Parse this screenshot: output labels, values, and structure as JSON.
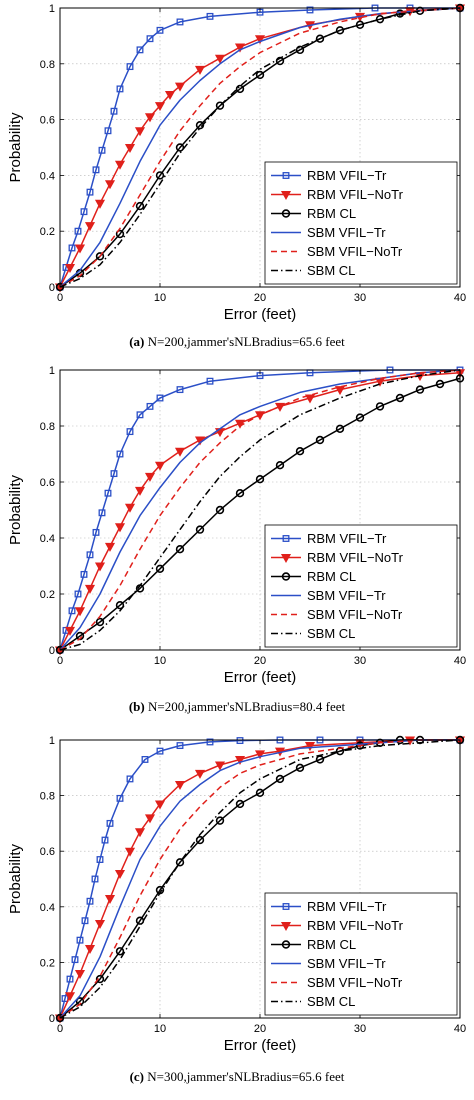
{
  "figure": {
    "captions": [
      {
        "label": "(a)",
        "text": "N=200,jammer'sNLBradius=65.6 feet"
      },
      {
        "label": "(b)",
        "text": "N=200,jammer'sNLBradius=80.4 feet"
      },
      {
        "label": "(c)",
        "text": "N=300,jammer'sNLBradius=65.6 feet"
      }
    ]
  },
  "chart_data": [
    {
      "type": "line",
      "title": "",
      "xlabel": "Error (feet)",
      "ylabel": "Probability",
      "xlim": [
        0,
        40
      ],
      "ylim": [
        0,
        1
      ],
      "xticks": [
        0,
        10,
        20,
        30,
        40
      ],
      "yticks": [
        0,
        0.2,
        0.4,
        0.6,
        0.8,
        1
      ],
      "grid": true,
      "legend_position": "bottom-right",
      "series": [
        {
          "name": "RBM VFIL−Tr",
          "color": "#2b4fc7",
          "style": "solid",
          "marker": "square",
          "x": [
            0,
            0.6,
            1.2,
            1.8,
            2.4,
            3,
            3.6,
            4.2,
            4.8,
            5.4,
            6,
            7,
            8,
            9,
            10,
            12,
            15,
            20,
            25,
            31.5,
            35,
            40
          ],
          "y": [
            0,
            0.07,
            0.14,
            0.2,
            0.27,
            0.34,
            0.42,
            0.49,
            0.56,
            0.63,
            0.71,
            0.79,
            0.85,
            0.89,
            0.92,
            0.95,
            0.97,
            0.985,
            0.993,
            1,
            1,
            1
          ]
        },
        {
          "name": "RBM VFIL−NoTr",
          "color": "#e0201b",
          "style": "solid",
          "marker": "triangle-down",
          "x": [
            0,
            1,
            2,
            3,
            4,
            5,
            6,
            7,
            8,
            9,
            10,
            11,
            12,
            14,
            16,
            18,
            20,
            25,
            30,
            35,
            40
          ],
          "y": [
            0,
            0.07,
            0.14,
            0.22,
            0.3,
            0.37,
            0.44,
            0.5,
            0.56,
            0.61,
            0.65,
            0.69,
            0.72,
            0.78,
            0.82,
            0.86,
            0.89,
            0.94,
            0.97,
            0.99,
            1
          ]
        },
        {
          "name": "RBM CL",
          "color": "#000000",
          "style": "solid",
          "marker": "circle",
          "x": [
            0,
            2,
            4,
            6,
            8,
            10,
            12,
            14,
            16,
            18,
            20,
            22,
            24,
            26,
            28,
            30,
            32,
            34,
            36,
            40
          ],
          "y": [
            0,
            0.05,
            0.11,
            0.19,
            0.29,
            0.4,
            0.5,
            0.58,
            0.65,
            0.71,
            0.76,
            0.81,
            0.85,
            0.89,
            0.92,
            0.94,
            0.96,
            0.98,
            0.99,
            1
          ]
        },
        {
          "name": "SBM VFIL−Tr",
          "color": "#2b4fc7",
          "style": "solid",
          "marker": "none",
          "x": [
            0,
            2,
            4,
            6,
            8,
            10,
            12,
            14,
            16,
            18,
            20,
            24,
            28,
            32,
            36,
            40
          ],
          "y": [
            0,
            0.06,
            0.16,
            0.3,
            0.45,
            0.58,
            0.67,
            0.74,
            0.8,
            0.85,
            0.88,
            0.93,
            0.96,
            0.98,
            0.99,
            1
          ]
        },
        {
          "name": "SBM VFIL−NoTr",
          "color": "#e0201b",
          "style": "dashed",
          "marker": "none",
          "x": [
            0,
            2,
            4,
            6,
            8,
            10,
            12,
            14,
            16,
            18,
            20,
            24,
            28,
            32,
            36,
            40
          ],
          "y": [
            0,
            0.04,
            0.11,
            0.21,
            0.33,
            0.45,
            0.56,
            0.65,
            0.73,
            0.79,
            0.84,
            0.91,
            0.95,
            0.98,
            0.99,
            1
          ]
        },
        {
          "name": "SBM CL",
          "color": "#000000",
          "style": "dashdot",
          "marker": "none",
          "x": [
            0,
            2,
            4,
            6,
            8,
            10,
            12,
            14,
            16,
            18,
            20,
            24,
            28,
            32,
            36,
            40
          ],
          "y": [
            0,
            0.03,
            0.08,
            0.16,
            0.26,
            0.37,
            0.48,
            0.57,
            0.65,
            0.72,
            0.78,
            0.86,
            0.92,
            0.96,
            0.99,
            1
          ]
        }
      ]
    },
    {
      "type": "line",
      "title": "",
      "xlabel": "Error (feet)",
      "ylabel": "Probability",
      "xlim": [
        0,
        40
      ],
      "ylim": [
        0,
        1
      ],
      "xticks": [
        0,
        10,
        20,
        30,
        40
      ],
      "yticks": [
        0,
        0.2,
        0.4,
        0.6,
        0.8,
        1
      ],
      "grid": true,
      "legend_position": "bottom-right",
      "series": [
        {
          "name": "RBM VFIL−Tr",
          "color": "#2b4fc7",
          "style": "solid",
          "marker": "square",
          "x": [
            0,
            0.6,
            1.2,
            1.8,
            2.4,
            3,
            3.6,
            4.2,
            4.8,
            5.4,
            6,
            7,
            8,
            9,
            10,
            12,
            15,
            20,
            25,
            33,
            40
          ],
          "y": [
            0,
            0.07,
            0.14,
            0.2,
            0.27,
            0.34,
            0.42,
            0.49,
            0.56,
            0.63,
            0.7,
            0.78,
            0.84,
            0.87,
            0.9,
            0.93,
            0.96,
            0.98,
            0.99,
            1,
            1
          ]
        },
        {
          "name": "RBM VFIL−NoTr",
          "color": "#e0201b",
          "style": "solid",
          "marker": "triangle-down",
          "x": [
            0,
            1,
            2,
            3,
            4,
            5,
            6,
            7,
            8,
            9,
            10,
            12,
            14,
            16,
            18,
            20,
            22,
            25,
            28,
            32,
            36,
            40
          ],
          "y": [
            0,
            0.07,
            0.14,
            0.22,
            0.3,
            0.37,
            0.44,
            0.51,
            0.57,
            0.62,
            0.66,
            0.71,
            0.75,
            0.78,
            0.81,
            0.84,
            0.87,
            0.9,
            0.93,
            0.96,
            0.98,
            0.99
          ]
        },
        {
          "name": "RBM CL",
          "color": "#000000",
          "style": "solid",
          "marker": "circle",
          "x": [
            0,
            2,
            4,
            6,
            8,
            10,
            12,
            14,
            16,
            18,
            20,
            22,
            24,
            26,
            28,
            30,
            32,
            34,
            36,
            38,
            40
          ],
          "y": [
            0,
            0.05,
            0.1,
            0.16,
            0.22,
            0.29,
            0.36,
            0.43,
            0.5,
            0.56,
            0.61,
            0.66,
            0.71,
            0.75,
            0.79,
            0.83,
            0.87,
            0.9,
            0.93,
            0.95,
            0.97
          ]
        },
        {
          "name": "SBM VFIL−Tr",
          "color": "#2b4fc7",
          "style": "solid",
          "marker": "none",
          "x": [
            0,
            2,
            4,
            6,
            8,
            10,
            12,
            14,
            16,
            18,
            20,
            24,
            28,
            32,
            36,
            40
          ],
          "y": [
            0,
            0.08,
            0.2,
            0.35,
            0.48,
            0.58,
            0.67,
            0.74,
            0.79,
            0.84,
            0.87,
            0.92,
            0.95,
            0.97,
            0.99,
            1
          ]
        },
        {
          "name": "SBM VFIL−NoTr",
          "color": "#e0201b",
          "style": "dashed",
          "marker": "none",
          "x": [
            0,
            2,
            4,
            6,
            8,
            10,
            12,
            14,
            16,
            18,
            20,
            24,
            28,
            32,
            36,
            40
          ],
          "y": [
            0,
            0.04,
            0.12,
            0.23,
            0.36,
            0.48,
            0.58,
            0.67,
            0.74,
            0.8,
            0.84,
            0.9,
            0.94,
            0.97,
            0.99,
            1
          ]
        },
        {
          "name": "SBM CL",
          "color": "#000000",
          "style": "dashdot",
          "marker": "none",
          "x": [
            0,
            2,
            4,
            6,
            8,
            10,
            12,
            14,
            16,
            18,
            20,
            24,
            28,
            32,
            36,
            40
          ],
          "y": [
            0,
            0.02,
            0.07,
            0.14,
            0.23,
            0.33,
            0.43,
            0.53,
            0.62,
            0.69,
            0.75,
            0.84,
            0.9,
            0.95,
            0.98,
            1
          ]
        }
      ]
    },
    {
      "type": "line",
      "title": "",
      "xlabel": "Error (feet)",
      "ylabel": "Probability",
      "xlim": [
        0,
        40
      ],
      "ylim": [
        0,
        1
      ],
      "xticks": [
        0,
        10,
        20,
        30,
        40
      ],
      "yticks": [
        0,
        0.2,
        0.4,
        0.6,
        0.8,
        1
      ],
      "grid": true,
      "legend_position": "bottom-right",
      "series": [
        {
          "name": "RBM VFIL−Tr",
          "color": "#2b4fc7",
          "style": "solid",
          "marker": "square",
          "x": [
            0,
            0.5,
            1,
            1.5,
            2,
            2.5,
            3,
            3.5,
            4,
            4.5,
            5,
            6,
            7,
            8.5,
            10,
            12,
            15,
            18,
            22,
            26,
            30,
            40
          ],
          "y": [
            0,
            0.07,
            0.14,
            0.21,
            0.28,
            0.35,
            0.42,
            0.5,
            0.57,
            0.64,
            0.7,
            0.79,
            0.86,
            0.93,
            0.96,
            0.98,
            0.993,
            0.998,
            1,
            1,
            1,
            1
          ]
        },
        {
          "name": "RBM VFIL−NoTr",
          "color": "#e0201b",
          "style": "solid",
          "marker": "triangle-down",
          "x": [
            0,
            1,
            2,
            3,
            4,
            5,
            6,
            7,
            8,
            9,
            10,
            12,
            14,
            16,
            18,
            20,
            22,
            25,
            30,
            35,
            40
          ],
          "y": [
            0,
            0.08,
            0.16,
            0.25,
            0.34,
            0.43,
            0.52,
            0.6,
            0.67,
            0.72,
            0.77,
            0.84,
            0.88,
            0.91,
            0.93,
            0.95,
            0.96,
            0.98,
            0.99,
            1,
            1
          ]
        },
        {
          "name": "RBM CL",
          "color": "#000000",
          "style": "solid",
          "marker": "circle",
          "x": [
            0,
            2,
            4,
            6,
            8,
            10,
            12,
            14,
            16,
            18,
            20,
            22,
            24,
            26,
            28,
            30,
            32,
            34,
            36,
            40
          ],
          "y": [
            0,
            0.06,
            0.14,
            0.24,
            0.35,
            0.46,
            0.56,
            0.64,
            0.71,
            0.77,
            0.81,
            0.86,
            0.9,
            0.93,
            0.96,
            0.98,
            0.99,
            1,
            1,
            1
          ]
        },
        {
          "name": "SBM VFIL−Tr",
          "color": "#2b4fc7",
          "style": "solid",
          "marker": "none",
          "x": [
            0,
            2,
            4,
            6,
            8,
            10,
            12,
            14,
            16,
            18,
            20,
            24,
            28,
            32,
            36,
            40
          ],
          "y": [
            0,
            0.08,
            0.22,
            0.4,
            0.57,
            0.69,
            0.78,
            0.84,
            0.89,
            0.92,
            0.94,
            0.97,
            0.98,
            0.99,
            1,
            1
          ]
        },
        {
          "name": "SBM VFIL−NoTr",
          "color": "#e0201b",
          "style": "dashed",
          "marker": "none",
          "x": [
            0,
            2,
            4,
            6,
            8,
            10,
            12,
            14,
            16,
            18,
            20,
            24,
            28,
            32,
            36,
            40
          ],
          "y": [
            0,
            0.05,
            0.15,
            0.29,
            0.44,
            0.57,
            0.68,
            0.76,
            0.83,
            0.88,
            0.91,
            0.95,
            0.97,
            0.99,
            1,
            1
          ]
        },
        {
          "name": "SBM CL",
          "color": "#000000",
          "style": "dashdot",
          "marker": "none",
          "x": [
            0,
            2,
            4,
            6,
            8,
            10,
            12,
            14,
            16,
            18,
            20,
            24,
            28,
            32,
            36,
            40
          ],
          "y": [
            0,
            0.04,
            0.11,
            0.21,
            0.33,
            0.45,
            0.56,
            0.66,
            0.74,
            0.81,
            0.86,
            0.93,
            0.96,
            0.98,
            0.99,
            1
          ]
        }
      ]
    }
  ]
}
